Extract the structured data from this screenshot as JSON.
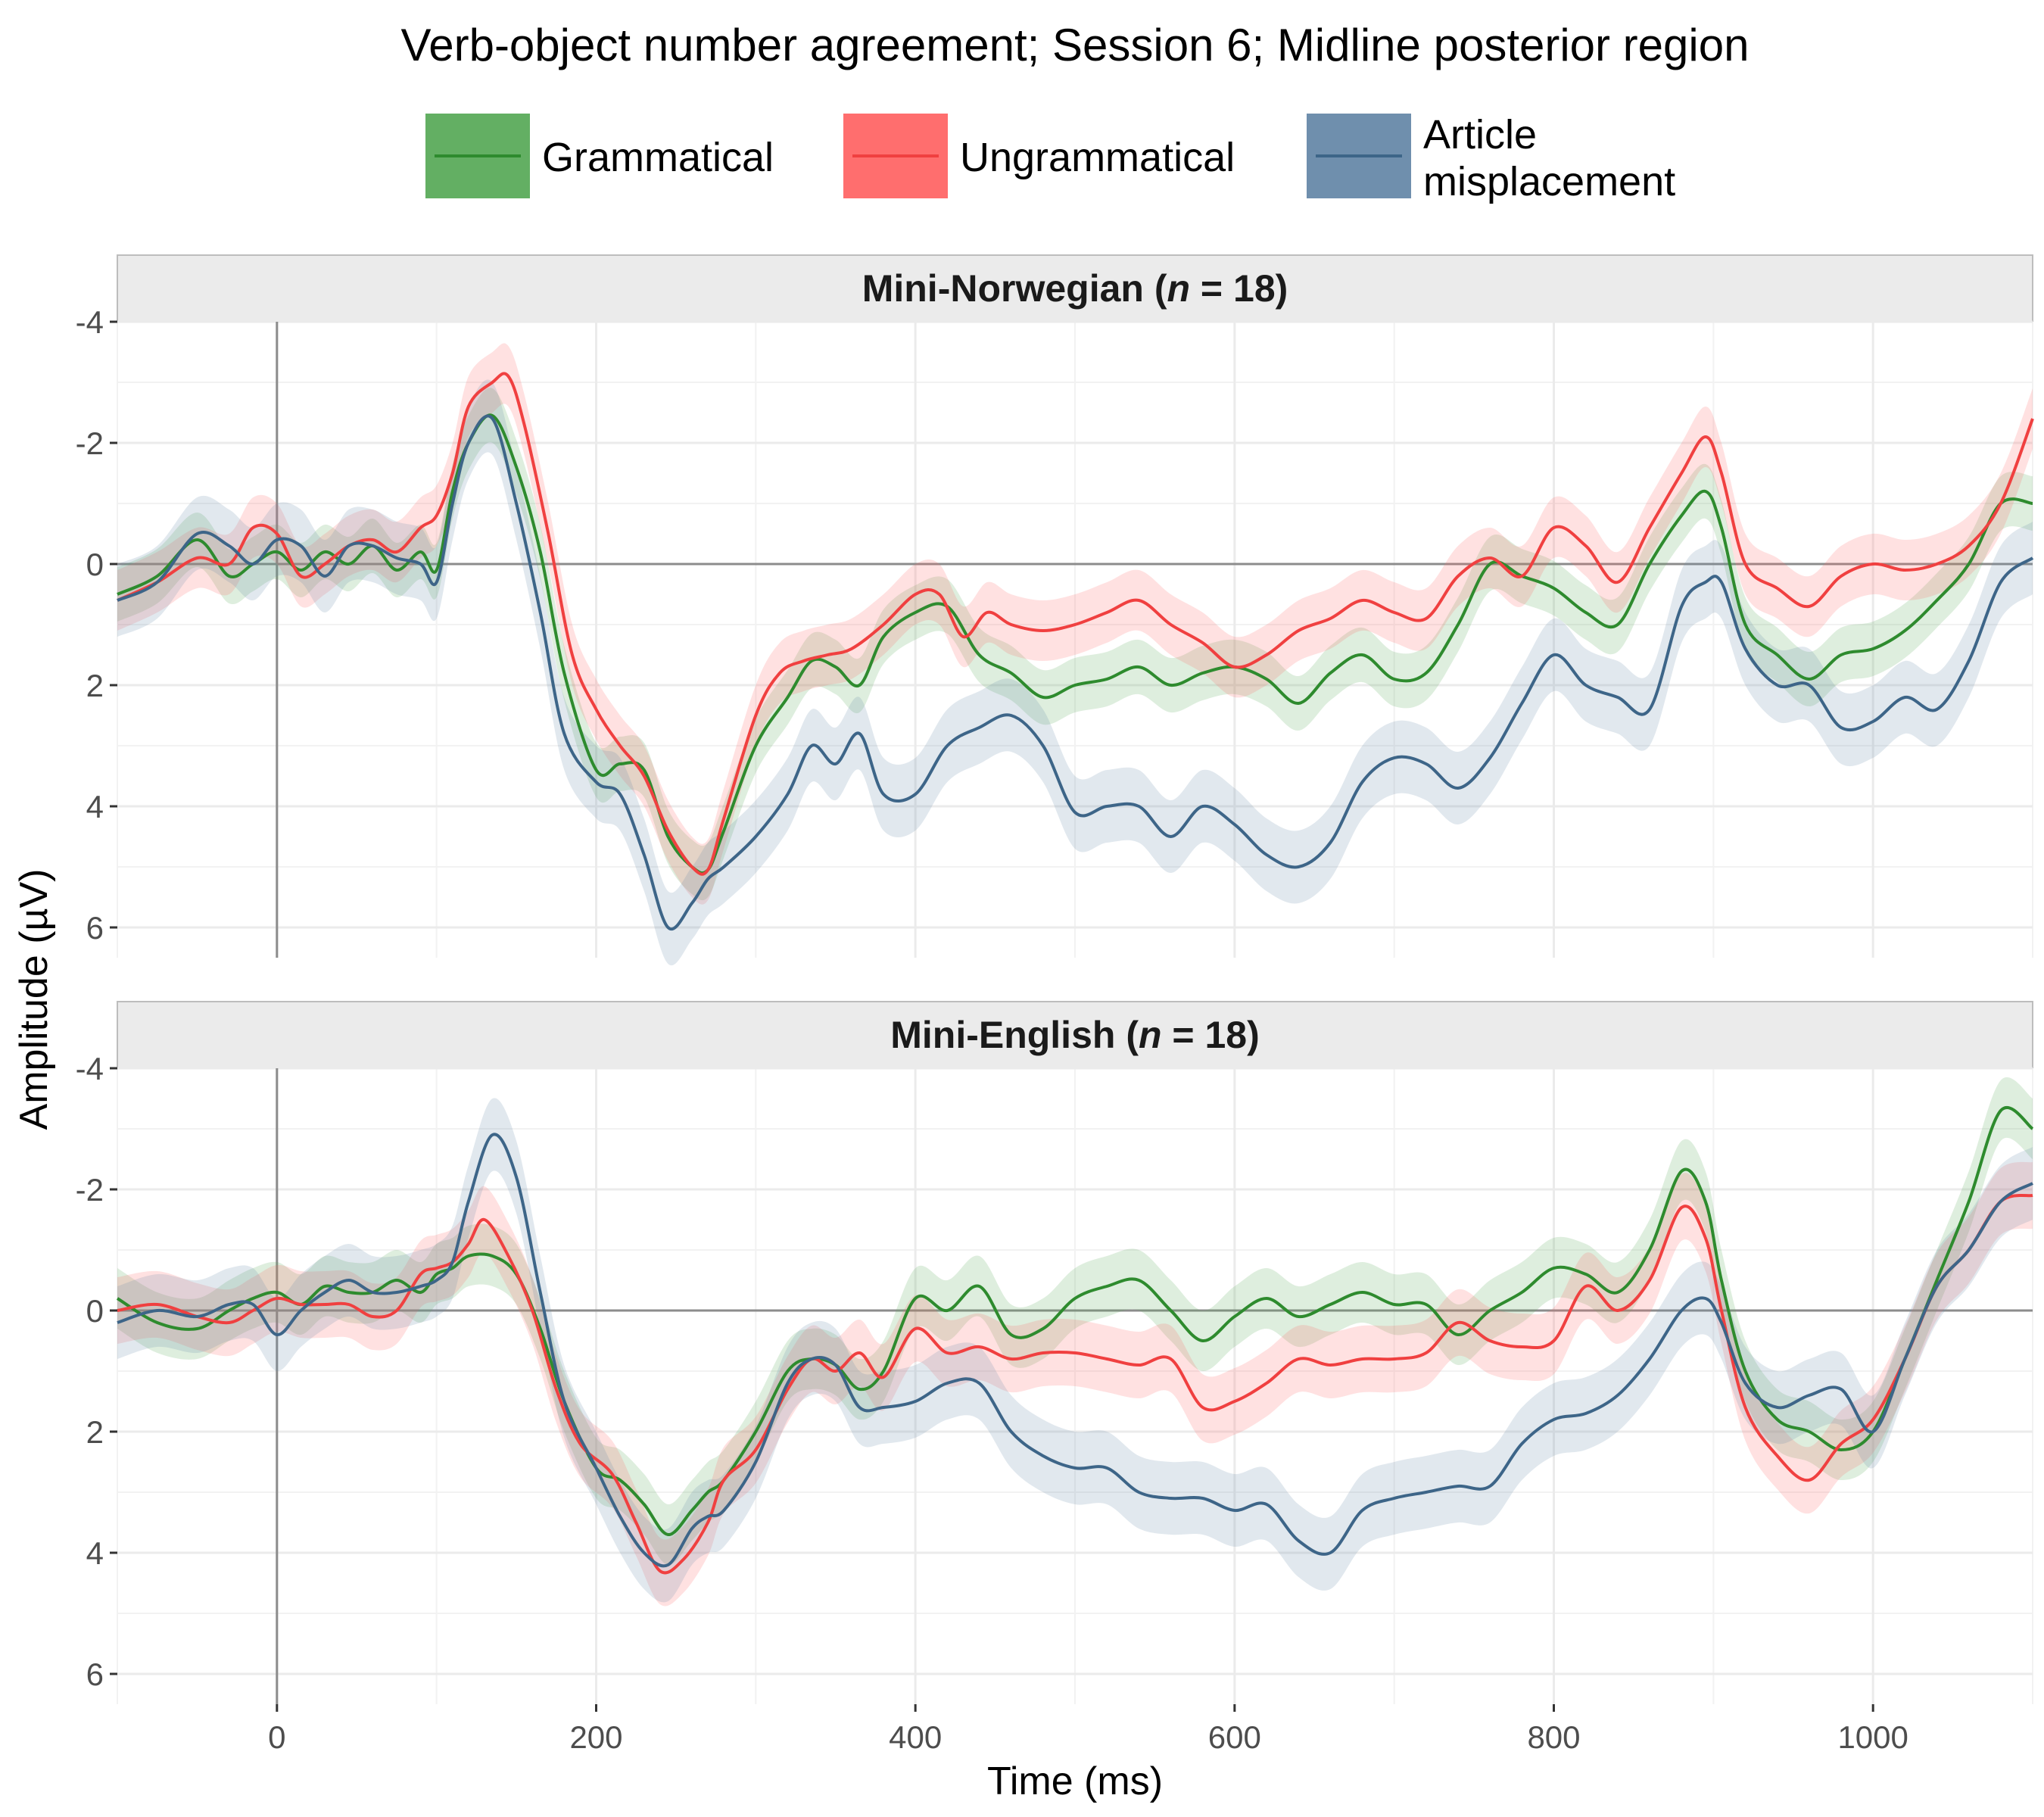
{
  "chart_data": {
    "type": "line",
    "title": "Verb-object number agreement; Session 6; Midline posterior region",
    "xlabel": "Time (ms)",
    "ylabel": "Amplitude (µV)",
    "xlim": [
      -100,
      1100
    ],
    "ylim": [
      -4,
      6.5
    ],
    "y_reversed": true,
    "x_ticks": [
      0,
      200,
      400,
      600,
      800,
      1000
    ],
    "y_ticks": [
      -4,
      -2,
      0,
      2,
      4,
      6
    ],
    "y_tick_labels": [
      "-4",
      "-2",
      "0",
      "2",
      "4",
      "6"
    ],
    "x_tick_labels": [
      "0",
      "200",
      "400",
      "600",
      "800",
      "1000"
    ],
    "grid": true,
    "legend_position": "top",
    "legend": [
      {
        "line1": "Grammatical",
        "line2": "",
        "color": "#2e8b2e",
        "fill": "#5aab5a"
      },
      {
        "line1": "Ungrammatical",
        "line2": "",
        "color": "#f04040",
        "fill": "#ff6b6b"
      },
      {
        "line1": "Article",
        "line2": "misplacement",
        "color": "#3d6588",
        "fill": "#6a8caa"
      }
    ],
    "panels": [
      {
        "strip_prefix": "Mini-Norwegian (",
        "strip_n": "n",
        "strip_suffix": " = 18)",
        "series": [
          {
            "name": "Grammatical",
            "band": 0.45,
            "x": [
              -100,
              -75,
              -50,
              -30,
              -15,
              0,
              15,
              30,
              45,
              60,
              75,
              90,
              100,
              110,
              120,
              135,
              150,
              165,
              180,
              200,
              215,
              230,
              245,
              260,
              270,
              280,
              300,
              320,
              335,
              350,
              365,
              380,
              400,
              420,
              440,
              460,
              480,
              500,
              520,
              540,
              560,
              580,
              600,
              620,
              640,
              660,
              680,
              700,
              720,
              740,
              760,
              780,
              800,
              820,
              840,
              860,
              880,
              895,
              905,
              920,
              940,
              960,
              980,
              1000,
              1020,
              1040,
              1060,
              1080,
              1100
            ],
            "y": [
              0.5,
              0.2,
              -0.4,
              0.2,
              0.0,
              -0.2,
              0.1,
              -0.2,
              0.0,
              -0.3,
              0.1,
              -0.2,
              0.1,
              -1.2,
              -2.0,
              -2.45,
              -1.6,
              -0.2,
              1.8,
              3.4,
              3.3,
              3.4,
              4.5,
              5.0,
              5.05,
              4.4,
              3.0,
              2.2,
              1.6,
              1.7,
              2.0,
              1.2,
              0.8,
              0.7,
              1.5,
              1.8,
              2.2,
              2.0,
              1.9,
              1.7,
              2.0,
              1.8,
              1.7,
              1.9,
              2.3,
              1.8,
              1.5,
              1.9,
              1.8,
              1.0,
              0.0,
              0.2,
              0.4,
              0.8,
              1.0,
              0.0,
              -0.8,
              -1.2,
              -0.6,
              1.0,
              1.5,
              1.9,
              1.5,
              1.4,
              1.1,
              0.6,
              0.0,
              -1.0,
              -1.0
            ]
          },
          {
            "name": "Ungrammatical",
            "band": 0.5,
            "x": [
              -100,
              -75,
              -50,
              -30,
              -15,
              0,
              15,
              30,
              45,
              60,
              75,
              90,
              100,
              110,
              120,
              135,
              145,
              155,
              170,
              185,
              200,
              215,
              230,
              245,
              260,
              270,
              280,
              300,
              315,
              330,
              345,
              360,
              380,
              400,
              415,
              430,
              445,
              460,
              480,
              500,
              520,
              540,
              560,
              580,
              600,
              620,
              640,
              660,
              680,
              700,
              720,
              740,
              760,
              780,
              800,
              820,
              840,
              860,
              880,
              895,
              905,
              920,
              940,
              960,
              980,
              1000,
              1020,
              1040,
              1060,
              1080,
              1100
            ],
            "y": [
              0.6,
              0.3,
              -0.1,
              0.0,
              -0.6,
              -0.5,
              0.2,
              0.0,
              -0.3,
              -0.4,
              -0.2,
              -0.6,
              -0.8,
              -1.5,
              -2.6,
              -3.0,
              -3.1,
              -2.3,
              -0.5,
              1.5,
              2.4,
              3.0,
              3.5,
              4.4,
              5.0,
              5.05,
              4.2,
              2.5,
              1.8,
              1.6,
              1.5,
              1.4,
              1.0,
              0.5,
              0.5,
              1.2,
              0.8,
              1.0,
              1.1,
              1.0,
              0.8,
              0.6,
              1.0,
              1.3,
              1.7,
              1.5,
              1.1,
              0.9,
              0.6,
              0.8,
              0.9,
              0.2,
              -0.1,
              0.2,
              -0.6,
              -0.3,
              0.3,
              -0.6,
              -1.5,
              -2.1,
              -1.5,
              0.0,
              0.4,
              0.7,
              0.2,
              0.0,
              0.1,
              0.0,
              -0.3,
              -1.0,
              -2.4
            ]
          },
          {
            "name": "Article misplacement",
            "band": 0.6,
            "x": [
              -100,
              -75,
              -50,
              -30,
              -15,
              0,
              15,
              30,
              45,
              60,
              75,
              90,
              100,
              110,
              120,
              135,
              150,
              165,
              180,
              200,
              215,
              230,
              245,
              260,
              270,
              280,
              300,
              320,
              335,
              350,
              365,
              380,
              400,
              420,
              440,
              460,
              480,
              500,
              520,
              540,
              560,
              580,
              600,
              620,
              640,
              660,
              680,
              700,
              720,
              740,
              760,
              780,
              800,
              820,
              840,
              860,
              880,
              895,
              905,
              920,
              940,
              960,
              980,
              1000,
              1020,
              1040,
              1060,
              1080,
              1100
            ],
            "y": [
              0.6,
              0.3,
              -0.5,
              -0.3,
              0.0,
              -0.4,
              -0.3,
              0.2,
              -0.3,
              -0.3,
              -0.1,
              0.0,
              0.3,
              -1.0,
              -2.0,
              -2.4,
              -1.0,
              0.8,
              2.8,
              3.6,
              3.8,
              4.8,
              6.0,
              5.6,
              5.2,
              5.0,
              4.5,
              3.8,
              3.0,
              3.3,
              2.8,
              3.8,
              3.8,
              3.0,
              2.7,
              2.5,
              3.0,
              4.1,
              4.0,
              4.0,
              4.5,
              4.0,
              4.3,
              4.8,
              5.0,
              4.6,
              3.6,
              3.2,
              3.3,
              3.7,
              3.2,
              2.3,
              1.5,
              2.0,
              2.2,
              2.4,
              0.7,
              0.3,
              0.3,
              1.4,
              2.0,
              2.0,
              2.7,
              2.6,
              2.2,
              2.4,
              1.6,
              0.3,
              -0.1
            ]
          }
        ]
      },
      {
        "strip_prefix": "Mini-English (",
        "strip_n": "n",
        "strip_suffix": " = 18)",
        "series": [
          {
            "name": "Grammatical",
            "band": 0.5,
            "x": [
              -100,
              -75,
              -50,
              -30,
              -15,
              0,
              15,
              30,
              45,
              60,
              75,
              90,
              100,
              110,
              120,
              135,
              150,
              165,
              180,
              200,
              215,
              230,
              245,
              260,
              270,
              280,
              300,
              320,
              335,
              350,
              365,
              380,
              400,
              420,
              440,
              460,
              480,
              500,
              520,
              540,
              560,
              580,
              600,
              620,
              640,
              660,
              680,
              700,
              720,
              740,
              760,
              780,
              800,
              820,
              840,
              860,
              880,
              895,
              905,
              920,
              940,
              960,
              980,
              1000,
              1020,
              1040,
              1060,
              1080,
              1100
            ],
            "y": [
              -0.2,
              0.2,
              0.3,
              0.0,
              -0.2,
              -0.3,
              -0.1,
              -0.4,
              -0.3,
              -0.3,
              -0.5,
              -0.3,
              -0.6,
              -0.7,
              -0.9,
              -0.9,
              -0.6,
              0.3,
              1.5,
              2.6,
              2.8,
              3.2,
              3.7,
              3.3,
              3.0,
              2.8,
              2.0,
              1.0,
              0.8,
              0.9,
              1.3,
              1.0,
              -0.2,
              0.0,
              -0.4,
              0.4,
              0.3,
              -0.2,
              -0.4,
              -0.5,
              0.0,
              0.5,
              0.1,
              -0.2,
              0.1,
              -0.1,
              -0.3,
              -0.1,
              -0.1,
              0.4,
              0.0,
              -0.3,
              -0.7,
              -0.6,
              -0.3,
              -1.0,
              -2.3,
              -1.8,
              -0.5,
              1.0,
              1.8,
              2.0,
              2.3,
              2.0,
              0.8,
              -0.5,
              -1.8,
              -3.3,
              -3.0
            ]
          },
          {
            "name": "Ungrammatical",
            "band": 0.55,
            "x": [
              -100,
              -75,
              -50,
              -30,
              -15,
              0,
              15,
              30,
              45,
              60,
              75,
              90,
              100,
              110,
              120,
              130,
              145,
              160,
              175,
              190,
              210,
              225,
              240,
              255,
              270,
              280,
              300,
              320,
              335,
              350,
              365,
              380,
              400,
              420,
              440,
              460,
              480,
              500,
              520,
              540,
              560,
              580,
              600,
              620,
              640,
              660,
              680,
              700,
              720,
              740,
              760,
              780,
              800,
              820,
              840,
              860,
              880,
              895,
              905,
              920,
              940,
              960,
              980,
              1000,
              1020,
              1040,
              1060,
              1080,
              1100
            ],
            "y": [
              0.0,
              -0.1,
              0.1,
              0.2,
              0.0,
              -0.2,
              -0.1,
              -0.1,
              -0.1,
              0.1,
              0.0,
              -0.6,
              -0.7,
              -0.8,
              -1.1,
              -1.5,
              -0.9,
              0.0,
              1.3,
              2.2,
              2.7,
              3.5,
              4.3,
              4.1,
              3.5,
              2.8,
              2.3,
              1.3,
              0.8,
              1.0,
              0.7,
              1.1,
              0.3,
              0.7,
              0.6,
              0.8,
              0.7,
              0.7,
              0.8,
              0.9,
              0.8,
              1.6,
              1.5,
              1.2,
              0.8,
              0.9,
              0.8,
              0.8,
              0.7,
              0.2,
              0.5,
              0.6,
              0.5,
              -0.4,
              0.0,
              -0.5,
              -1.7,
              -1.2,
              0.0,
              1.6,
              2.4,
              2.8,
              2.2,
              1.8,
              0.8,
              -0.4,
              -1.0,
              -1.8,
              -1.9
            ]
          },
          {
            "name": "Article misplacement",
            "band": 0.6,
            "x": [
              -100,
              -75,
              -50,
              -30,
              -15,
              0,
              15,
              30,
              45,
              60,
              75,
              90,
              100,
              110,
              120,
              135,
              150,
              165,
              180,
              200,
              215,
              230,
              245,
              260,
              270,
              280,
              300,
              320,
              335,
              350,
              365,
              380,
              400,
              420,
              440,
              460,
              480,
              500,
              520,
              540,
              560,
              580,
              600,
              620,
              640,
              660,
              680,
              700,
              720,
              740,
              760,
              780,
              800,
              820,
              840,
              860,
              880,
              895,
              905,
              920,
              940,
              960,
              980,
              1000,
              1020,
              1040,
              1060,
              1080,
              1100
            ],
            "y": [
              0.2,
              0.0,
              0.1,
              -0.1,
              -0.1,
              0.4,
              0.0,
              -0.3,
              -0.5,
              -0.3,
              -0.3,
              -0.4,
              -0.5,
              -0.8,
              -1.8,
              -2.9,
              -2.2,
              -0.3,
              1.5,
              2.6,
              3.4,
              4.0,
              4.2,
              3.6,
              3.4,
              3.3,
              2.5,
              1.2,
              0.8,
              0.9,
              1.6,
              1.6,
              1.5,
              1.2,
              1.2,
              2.0,
              2.4,
              2.6,
              2.6,
              3.0,
              3.1,
              3.1,
              3.3,
              3.2,
              3.8,
              4.0,
              3.3,
              3.1,
              3.0,
              2.9,
              2.9,
              2.2,
              1.8,
              1.7,
              1.4,
              0.8,
              0.0,
              -0.2,
              0.2,
              1.2,
              1.6,
              1.4,
              1.3,
              2.0,
              0.8,
              -0.4,
              -1.0,
              -1.8,
              -2.1
            ]
          }
        ]
      }
    ]
  }
}
